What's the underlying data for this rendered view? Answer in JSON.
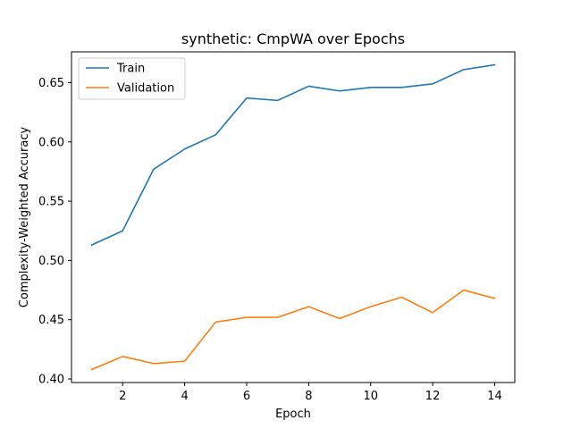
{
  "chart_data": {
    "type": "line",
    "title": "synthetic: CmpWA over Epochs",
    "xlabel": "Epoch",
    "ylabel": "Complexity-Weighted Accuracy",
    "x": [
      1,
      2,
      3,
      4,
      5,
      6,
      7,
      8,
      9,
      10,
      11,
      12,
      13,
      14
    ],
    "xlim": [
      0.35,
      14.65
    ],
    "ylim": [
      0.397,
      0.676
    ],
    "xticks": [
      2,
      4,
      6,
      8,
      10,
      12,
      14
    ],
    "yticks": [
      0.4,
      0.45,
      0.5,
      0.55,
      0.6,
      0.65
    ],
    "xtick_labels": [
      "2",
      "4",
      "6",
      "8",
      "10",
      "12",
      "14"
    ],
    "ytick_labels": [
      "0.40",
      "0.45",
      "0.50",
      "0.55",
      "0.60",
      "0.65"
    ],
    "grid": false,
    "legend_position": "top-left",
    "series": [
      {
        "name": "Train",
        "color": "#1f77b4",
        "values": [
          0.513,
          0.525,
          0.577,
          0.594,
          0.606,
          0.637,
          0.635,
          0.647,
          0.643,
          0.646,
          0.646,
          0.649,
          0.661,
          0.665
        ]
      },
      {
        "name": "Validation",
        "color": "#ff7f0e",
        "values": [
          0.408,
          0.419,
          0.413,
          0.415,
          0.448,
          0.452,
          0.452,
          0.461,
          0.451,
          0.461,
          0.469,
          0.456,
          0.475,
          0.468
        ]
      }
    ]
  }
}
